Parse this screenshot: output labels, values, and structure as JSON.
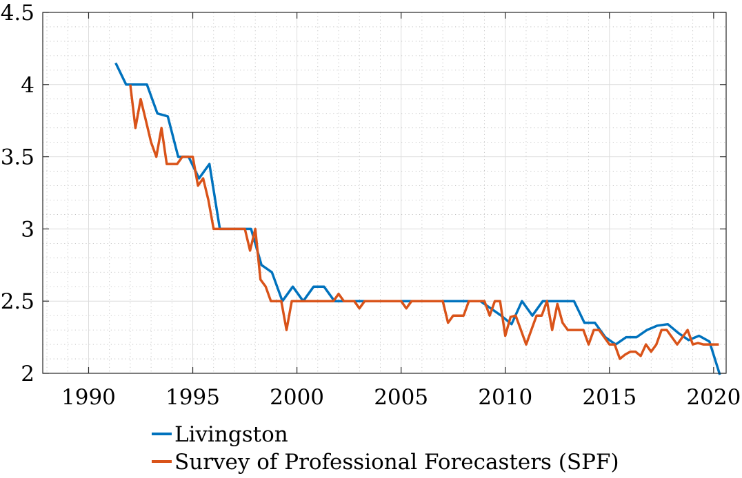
{
  "chart_data": {
    "type": "line",
    "title": "",
    "xlabel": "",
    "ylabel": "",
    "xlim": [
      1987.8,
      2020.6
    ],
    "ylim": [
      2,
      4.5
    ],
    "x_ticks": [
      1990,
      1995,
      2000,
      2005,
      2010,
      2015,
      2020
    ],
    "y_ticks": [
      2,
      2.5,
      3,
      3.5,
      4,
      4.5
    ],
    "x_tick_labels": [
      "1990",
      "1995",
      "2000",
      "2005",
      "2010",
      "2015",
      "2020"
    ],
    "y_tick_labels": [
      "2",
      "2.5",
      "3",
      "3.5",
      "4",
      "4.5"
    ],
    "grid": true,
    "minor_grid": true,
    "legend_position": "bottom",
    "series": [
      {
        "name": "Livingston",
        "color": "#0072BD",
        "x": [
          1991.3,
          1991.8,
          1992.3,
          1992.8,
          1993.3,
          1993.8,
          1994.3,
          1994.8,
          1995.3,
          1995.8,
          1996.3,
          1996.8,
          1997.3,
          1997.8,
          1998.3,
          1998.8,
          1999.3,
          1999.8,
          2000.3,
          2000.8,
          2001.3,
          2001.8,
          2002.3,
          2002.8,
          2003.3,
          2003.8,
          2004.3,
          2004.8,
          2005.3,
          2005.8,
          2006.3,
          2006.8,
          2007.3,
          2007.8,
          2008.3,
          2008.8,
          2009.3,
          2009.8,
          2010.3,
          2010.8,
          2011.3,
          2011.8,
          2012.3,
          2012.8,
          2013.3,
          2013.8,
          2014.3,
          2014.8,
          2015.3,
          2015.8,
          2016.3,
          2016.8,
          2017.3,
          2017.8,
          2018.3,
          2018.8,
          2019.3,
          2019.8,
          2020.3
        ],
        "y": [
          4.15,
          4.0,
          4.0,
          4.0,
          3.8,
          3.78,
          3.5,
          3.5,
          3.35,
          3.45,
          3.0,
          3.0,
          3.0,
          3.0,
          2.75,
          2.7,
          2.5,
          2.6,
          2.5,
          2.6,
          2.6,
          2.5,
          2.5,
          2.5,
          2.5,
          2.5,
          2.5,
          2.5,
          2.5,
          2.5,
          2.5,
          2.5,
          2.5,
          2.5,
          2.5,
          2.5,
          2.45,
          2.4,
          2.34,
          2.5,
          2.4,
          2.5,
          2.5,
          2.5,
          2.5,
          2.35,
          2.35,
          2.25,
          2.2,
          2.25,
          2.25,
          2.3,
          2.33,
          2.34,
          2.28,
          2.23,
          2.26,
          2.22,
          1.99
        ]
      },
      {
        "name": "Survey of Professional Forecasters (SPF)",
        "color": "#D95319",
        "x": [
          1992.0,
          1992.25,
          1992.5,
          1992.75,
          1993.0,
          1993.25,
          1993.5,
          1993.75,
          1994.0,
          1994.25,
          1994.5,
          1994.75,
          1995.0,
          1995.25,
          1995.5,
          1995.75,
          1996.0,
          1996.25,
          1996.5,
          1996.75,
          1997.0,
          1997.25,
          1997.5,
          1997.75,
          1998.0,
          1998.25,
          1998.5,
          1998.75,
          1999.0,
          1999.25,
          1999.5,
          1999.75,
          2000.0,
          2000.25,
          2000.5,
          2000.75,
          2001.0,
          2001.25,
          2001.5,
          2001.75,
          2002.0,
          2002.25,
          2002.5,
          2002.75,
          2003.0,
          2003.25,
          2003.5,
          2003.75,
          2004.0,
          2004.25,
          2004.5,
          2004.75,
          2005.0,
          2005.25,
          2005.5,
          2005.75,
          2006.0,
          2006.25,
          2006.5,
          2006.75,
          2007.0,
          2007.25,
          2007.5,
          2007.75,
          2008.0,
          2008.25,
          2008.5,
          2008.75,
          2009.0,
          2009.25,
          2009.5,
          2009.75,
          2010.0,
          2010.25,
          2010.5,
          2010.75,
          2011.0,
          2011.25,
          2011.5,
          2011.75,
          2012.0,
          2012.25,
          2012.5,
          2012.75,
          2013.0,
          2013.25,
          2013.5,
          2013.75,
          2014.0,
          2014.25,
          2014.5,
          2014.75,
          2015.0,
          2015.25,
          2015.5,
          2015.75,
          2016.0,
          2016.25,
          2016.5,
          2016.75,
          2017.0,
          2017.25,
          2017.5,
          2017.75,
          2018.0,
          2018.25,
          2018.5,
          2018.75,
          2019.0,
          2019.25,
          2019.5,
          2019.75,
          2020.0,
          2020.25
        ],
        "y": [
          4.0,
          3.7,
          3.9,
          3.75,
          3.6,
          3.5,
          3.7,
          3.45,
          3.45,
          3.45,
          3.5,
          3.5,
          3.5,
          3.3,
          3.35,
          3.2,
          3.0,
          3.0,
          3.0,
          3.0,
          3.0,
          3.0,
          3.0,
          2.85,
          3.0,
          2.65,
          2.6,
          2.5,
          2.5,
          2.5,
          2.3,
          2.5,
          2.5,
          2.5,
          2.5,
          2.5,
          2.5,
          2.5,
          2.5,
          2.5,
          2.55,
          2.5,
          2.5,
          2.5,
          2.45,
          2.5,
          2.5,
          2.5,
          2.5,
          2.5,
          2.5,
          2.5,
          2.5,
          2.45,
          2.5,
          2.5,
          2.5,
          2.5,
          2.5,
          2.5,
          2.5,
          2.35,
          2.4,
          2.4,
          2.4,
          2.5,
          2.5,
          2.5,
          2.5,
          2.4,
          2.5,
          2.5,
          2.26,
          2.39,
          2.4,
          2.3,
          2.2,
          2.3,
          2.4,
          2.4,
          2.5,
          2.3,
          2.48,
          2.35,
          2.3,
          2.3,
          2.3,
          2.3,
          2.2,
          2.3,
          2.3,
          2.25,
          2.2,
          2.2,
          2.1,
          2.13,
          2.15,
          2.15,
          2.12,
          2.2,
          2.15,
          2.2,
          2.3,
          2.3,
          2.25,
          2.2,
          2.25,
          2.3,
          2.2,
          2.21,
          2.2,
          2.2,
          2.2,
          2.2
        ]
      }
    ]
  }
}
